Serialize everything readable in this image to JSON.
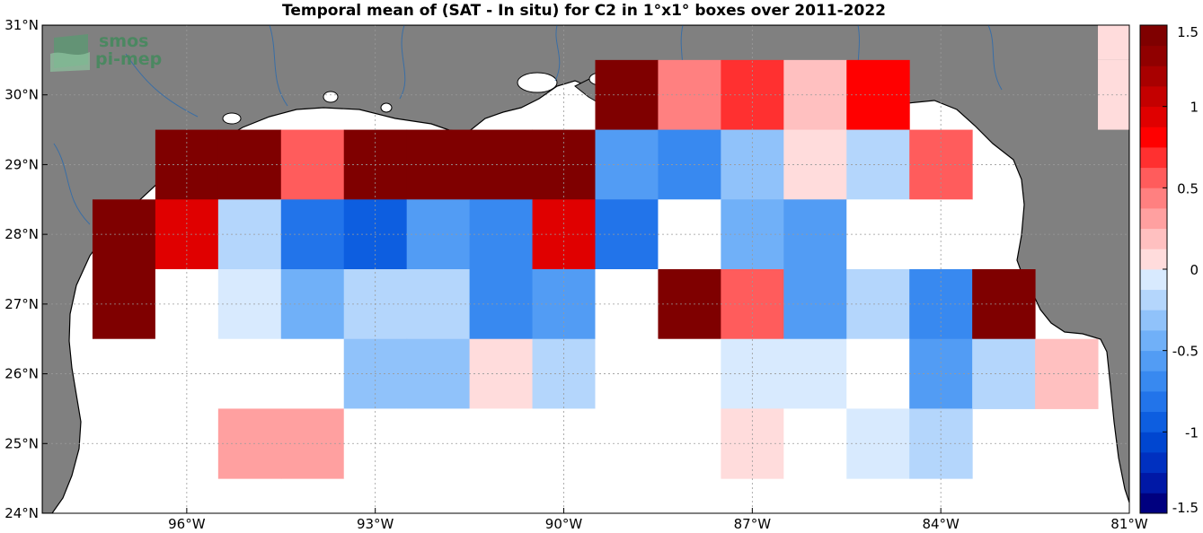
{
  "chart_data": {
    "type": "heatmap",
    "title": "Temporal mean of (SAT - In situ) for C2 in 1°x1° boxes over 2011-2022",
    "xlabel": "",
    "ylabel": "",
    "xlim": [
      -98.3,
      -81
    ],
    "ylim": [
      24,
      31
    ],
    "x_ticks": [
      -96,
      -93,
      -90,
      -87,
      -84,
      -81
    ],
    "x_tick_labels": [
      "96°W",
      "93°W",
      "90°W",
      "87°W",
      "84°W",
      "81°W"
    ],
    "y_ticks": [
      24,
      25,
      26,
      27,
      28,
      29,
      30,
      31
    ],
    "y_tick_labels": [
      "24°N",
      "25°N",
      "26°N",
      "27°N",
      "28°N",
      "29°N",
      "30°N",
      "31°N"
    ],
    "grid": true,
    "box_origin_lon": -97.5,
    "box_origin_lat": 24.5,
    "box_size_deg": 1,
    "lat_rows": [
      {
        "lat_min": 29.5,
        "values": [
          null,
          null,
          null,
          null,
          null,
          null,
          null,
          null,
          1.5,
          0.4,
          0.7,
          0.2,
          0.8,
          null,
          null,
          null
        ]
      },
      {
        "lat_min": 28.5,
        "values": [
          null,
          1.5,
          1.4,
          0.5,
          1.5,
          1.5,
          1.5,
          1.5,
          -0.6,
          -0.75,
          -0.3,
          0.1,
          -0.25,
          0.5,
          null,
          null
        ]
      },
      {
        "lat_min": 27.5,
        "values": [
          1.5,
          0.9,
          -0.25,
          -0.8,
          -0.95,
          -0.6,
          -0.7,
          0.9,
          -0.85,
          0,
          -0.45,
          -0.55,
          0,
          0,
          null,
          null
        ]
      },
      {
        "lat_min": 26.5,
        "values": [
          1.5,
          0,
          -0.1,
          -0.4,
          -0.2,
          -0.2,
          -0.75,
          -0.55,
          0,
          1.5,
          0.6,
          -0.55,
          -0.25,
          -0.7,
          1.5,
          null
        ]
      },
      {
        "lat_min": 25.5,
        "values": [
          0,
          0,
          0,
          0,
          -0.35,
          -0.35,
          0.1,
          -0.15,
          0,
          0,
          -0.1,
          -0.1,
          0,
          -0.55,
          -0.2,
          0.15
        ]
      },
      {
        "lat_min": 24.5,
        "values": [
          null,
          null,
          0.35,
          0.35,
          0,
          0,
          0,
          0,
          0,
          0,
          0.1,
          0,
          -0.1,
          -0.2,
          null,
          null
        ]
      }
    ],
    "extra_boxes": [
      {
        "lon_min": -81.5,
        "lat_min": 29.5,
        "value": 0.1
      },
      {
        "lon_min": -81.5,
        "lat_min": 30.5,
        "value": 0.1
      }
    ],
    "colorbar": {
      "min": -1.5,
      "max": 1.5,
      "ticks": [
        -1.5,
        -1,
        -0.5,
        0,
        0.5,
        1,
        1.5
      ],
      "tick_labels": [
        "-1.5",
        "-1",
        "-0.5",
        "0",
        "0.5",
        "1",
        "1.5"
      ]
    }
  },
  "logo": {
    "line1": "smos",
    "line2": "pi-mep"
  },
  "colors": {
    "land": "#808080",
    "ocean": "#ffffff",
    "river": "#3a6ea5",
    "coast": "#000000"
  }
}
